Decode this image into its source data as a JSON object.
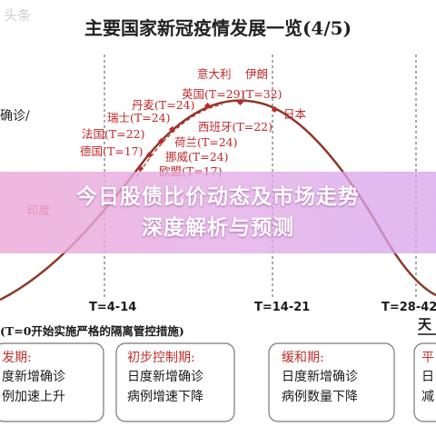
{
  "watermark": "头条",
  "title": "主要国家新冠疫情发展一览(4/5)",
  "left_cut_label": "确诊/",
  "peak_labels": {
    "italy": "意大利",
    "iran": "伊朗",
    "uk": "英国(T=29)",
    "iran_t": "(T=32)",
    "denmark": "丹麦(T=24)",
    "switzerland": "瑞士(T=24)",
    "france": "法国(T=22)",
    "germany": "德国(T=17)",
    "spain": "西班牙(T=22)",
    "netherlands": "荷兰(T=24)",
    "norway": "挪威(T=24)",
    "europe": "欧盟(T=17)",
    "japan": "日本",
    "left_partial": "印度"
  },
  "axis": {
    "t1": "T=4-14",
    "t2": "T=14-21",
    "t3": "T=28-42"
  },
  "note": "(T=0开始实施严格的隔离管控措施)",
  "right_partial_header": "天",
  "phases": [
    {
      "title": "发期:",
      "line1": "度新增确诊",
      "line2": "例加速上升"
    },
    {
      "title": "初步控制期:",
      "line1": "日度新增确诊",
      "line2": "病例增速下降"
    },
    {
      "title": "缓和期:",
      "line1": "日度新增确诊",
      "line2": "病例数量下降"
    },
    {
      "title": "平",
      "line1": "日",
      "line2": "减"
    }
  ],
  "colors": {
    "curve": "#8b3a2a",
    "label": "#c0282a",
    "phase_title": "#c0302a",
    "axis_text": "#1a1a1a"
  },
  "banner": {
    "line1": "今日股债比价动态及市场走势",
    "line2": "深度解析与预测"
  }
}
